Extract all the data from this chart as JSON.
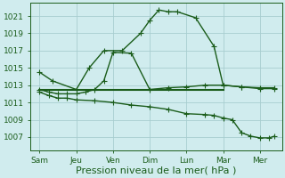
{
  "bg_color": "#d0ecee",
  "grid_color": "#a8cdd0",
  "line_color": "#1a5c1a",
  "marker_color": "#1a5c1a",
  "xlabel": "Pression niveau de la mer( hPa )",
  "xlabel_fontsize": 8,
  "xtick_labels": [
    "Sam",
    "Jeu",
    "Ven",
    "Dim",
    "Lun",
    "Mar",
    "Mer"
  ],
  "xtick_positions": [
    0,
    2,
    4,
    6,
    8,
    10,
    12
  ],
  "ytick_values": [
    1007,
    1009,
    1011,
    1013,
    1015,
    1017,
    1019,
    1021
  ],
  "ylim": [
    1005.5,
    1022.5
  ],
  "xlim": [
    -0.5,
    13.2
  ],
  "series": [
    {
      "x": [
        0,
        0.7,
        2,
        2.7,
        3.5,
        4.5,
        5.5,
        6,
        6.5,
        7,
        7.5,
        8.5,
        9.5,
        10,
        11,
        12,
        12.8
      ],
      "y": [
        1014.5,
        1013.5,
        1012.5,
        1015.0,
        1017.0,
        1017.0,
        1019.0,
        1020.5,
        1021.7,
        1021.5,
        1021.5,
        1020.8,
        1017.5,
        1013.0,
        1012.8,
        1012.7,
        1012.7
      ],
      "marker": "+",
      "markersize": 4,
      "linewidth": 1.0
    },
    {
      "x": [
        0,
        0.5,
        1,
        1.5,
        2,
        2.5,
        3,
        3.5,
        4,
        5,
        6,
        7,
        8,
        9,
        10,
        11,
        12,
        12.8
      ],
      "y": [
        1012.5,
        1012.2,
        1012.0,
        1012.0,
        1012.0,
        1012.2,
        1012.5,
        1013.5,
        1016.8,
        1016.7,
        1012.5,
        1012.7,
        1012.8,
        1013.0,
        1013.0,
        1012.8,
        1012.6,
        1012.6
      ],
      "marker": "+",
      "markersize": 4,
      "linewidth": 1.0
    },
    {
      "x": [
        0,
        0.5,
        1,
        1.5,
        2,
        3,
        4,
        5,
        6,
        7,
        8,
        9,
        9.5,
        10,
        10.5,
        11,
        11.5,
        12,
        12.5,
        12.8
      ],
      "y": [
        1012.2,
        1011.8,
        1011.5,
        1011.5,
        1011.3,
        1011.2,
        1011.0,
        1010.7,
        1010.5,
        1010.2,
        1009.7,
        1009.6,
        1009.5,
        1009.2,
        1009.0,
        1007.5,
        1007.1,
        1006.9,
        1006.9,
        1007.1
      ],
      "marker": "+",
      "markersize": 4,
      "linewidth": 1.0
    },
    {
      "x": [
        0,
        10
      ],
      "y": [
        1012.5,
        1012.5
      ],
      "marker": "",
      "markersize": 0,
      "linewidth": 1.5
    }
  ]
}
